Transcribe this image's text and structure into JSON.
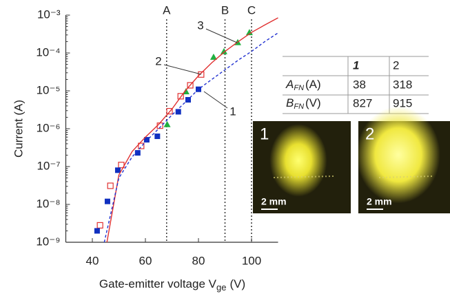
{
  "chart_data": {
    "type": "scatter",
    "ylabel": "Current (A)",
    "xlabel": {
      "text": "Gate-emitter voltage V",
      "sub": "ge",
      "unit": "(V)"
    },
    "xlim": [
      30,
      110
    ],
    "xticks": [
      40,
      60,
      80,
      100
    ],
    "ylim": [
      1e-09,
      0.001
    ],
    "log_y": true,
    "yticks": [
      {
        "value": 1e-09,
        "label": "10⁻⁹"
      },
      {
        "value": 1e-08,
        "label": "10⁻⁸"
      },
      {
        "value": 1e-07,
        "label": "10⁻⁷"
      },
      {
        "value": 1e-06,
        "label": "10⁻⁶"
      },
      {
        "value": 1e-05,
        "label": "10⁻⁵"
      },
      {
        "value": 0.0001,
        "label": "10⁻⁴"
      },
      {
        "value": 0.001,
        "label": "10⁻³"
      }
    ],
    "series": [
      {
        "marker": "open-square",
        "color": "#e03030",
        "x": [
          42.9,
          46.8,
          50.9,
          58.4,
          65.5,
          69.1,
          73.3,
          76.9,
          81.0
        ],
        "values": [
          2.8e-09,
          3.1e-08,
          1.1e-07,
          3.5e-07,
          1.2e-06,
          2.9e-06,
          7.2e-06,
          1.4e-05,
          2.7e-05
        ]
      },
      {
        "marker": "filled-square",
        "color": "#1030c0",
        "x": [
          41.8,
          45.7,
          49.6,
          57.1,
          60.5,
          64.5,
          72.4,
          76.1,
          80.0
        ],
        "values": [
          2e-09,
          1.2e-08,
          8e-08,
          2.3e-07,
          5.1e-07,
          6.3e-07,
          2.8e-06,
          5.8e-06,
          1.1e-05
        ]
      },
      {
        "marker": "triangle",
        "color": "#20b040",
        "x": [
          68.2,
          75.3,
          85.7,
          89.6,
          94.8,
          99.2
        ],
        "values": [
          1.3e-06,
          9.6e-06,
          7.8e-05,
          0.00011,
          0.00019,
          0.00035
        ]
      },
      {
        "marker": "solid-line",
        "color": "#e03030",
        "x": [
          45.5,
          50,
          55,
          60,
          65,
          70,
          75,
          80,
          85,
          90,
          95,
          100,
          105,
          110
        ],
        "values": [
          1e-09,
          6e-08,
          2.5e-07,
          6e-07,
          1.3e-06,
          3.3e-06,
          1e-05,
          2.5e-05,
          5.5e-05,
          0.00011,
          0.0002,
          0.00035,
          0.00055,
          0.00085
        ]
      },
      {
        "marker": "dashed-line",
        "color": "#2030d0",
        "x": [
          44.5,
          50,
          55,
          60,
          65,
          70,
          75,
          80,
          85,
          90,
          95,
          100,
          105,
          110
        ],
        "values": [
          1e-09,
          5e-08,
          1.8e-07,
          4.5e-07,
          1e-06,
          2.3e-06,
          5e-06,
          1.1e-05,
          2e-05,
          3.6e-05,
          6.5e-05,
          0.00011,
          0.0002,
          0.00034
        ]
      }
    ],
    "vlines": [
      {
        "label": "A",
        "x": 68
      },
      {
        "label": "B",
        "x": 90
      },
      {
        "label": "C",
        "x": 100
      }
    ],
    "annotations": [
      "1",
      "2",
      "3"
    ],
    "table": {
      "header": [
        "1",
        "2"
      ],
      "rows": [
        {
          "symbol": "A",
          "sub": "FN",
          "unit": "(A)",
          "cells": [
            "38",
            "318"
          ]
        },
        {
          "symbol": "B",
          "sub": "FN",
          "unit": "(V)",
          "cells": [
            "827",
            "915"
          ]
        }
      ]
    },
    "images": [
      {
        "label": "1",
        "scale": "2 mm"
      },
      {
        "label": "2",
        "scale": "2 mm"
      }
    ]
  }
}
